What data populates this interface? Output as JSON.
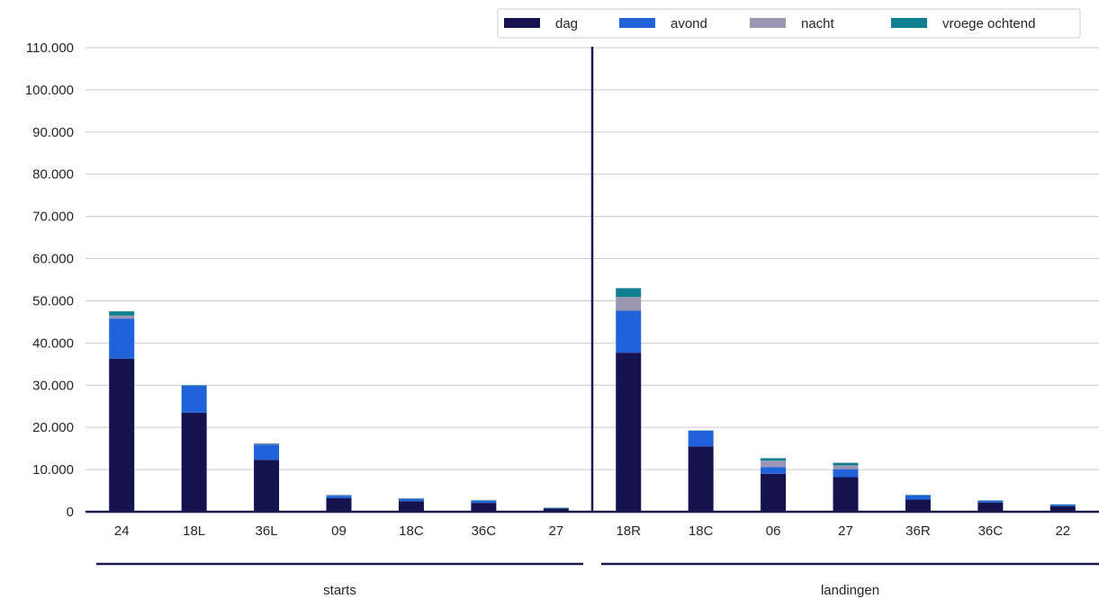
{
  "chart_data": {
    "type": "bar",
    "stacked": true,
    "title": "",
    "xlabel": "",
    "ylabel": "",
    "ylim": [
      0,
      110000
    ],
    "yticks": [
      "0",
      "10.000",
      "20.000",
      "30.000",
      "40.000",
      "50.000",
      "60.000",
      "70.000",
      "80.000",
      "90.000",
      "100.000",
      "110.000"
    ],
    "ytick_values": [
      0,
      10000,
      20000,
      30000,
      40000,
      50000,
      60000,
      70000,
      80000,
      90000,
      100000,
      110000
    ],
    "grid": "horizontal",
    "legend_position": "top-right",
    "categories": [
      "24",
      "18L",
      "36L",
      "09",
      "18C",
      "36C",
      "27",
      "18R",
      "18C",
      "06",
      "27",
      "36R",
      "36C",
      "22"
    ],
    "groups": [
      {
        "label": "starts",
        "categories": [
          "24",
          "18L",
          "36L",
          "09",
          "18C",
          "36C",
          "27"
        ]
      },
      {
        "label": "landingen",
        "categories": [
          "18R",
          "18C",
          "06",
          "27",
          "36R",
          "36C",
          "22"
        ]
      }
    ],
    "series": [
      {
        "name": "dag",
        "color": "#14124f",
        "values": [
          36300,
          23500,
          12300,
          3200,
          2500,
          2100,
          800,
          37700,
          15500,
          9000,
          8200,
          2900,
          2200,
          1300
        ]
      },
      {
        "name": "avond",
        "color": "#1f62d9",
        "values": [
          9500,
          6400,
          3600,
          600,
          500,
          500,
          100,
          10000,
          3700,
          1600,
          1900,
          1000,
          400,
          400
        ]
      },
      {
        "name": "nacht",
        "color": "#9b97b3",
        "values": [
          700,
          0,
          200,
          100,
          100,
          100,
          0,
          3200,
          0,
          1500,
          900,
          0,
          0,
          0
        ]
      },
      {
        "name": "vroege ochtend",
        "color": "#0f7f91",
        "values": [
          1000,
          100,
          100,
          100,
          100,
          100,
          50,
          2100,
          50,
          600,
          600,
          100,
          100,
          50
        ]
      }
    ]
  }
}
